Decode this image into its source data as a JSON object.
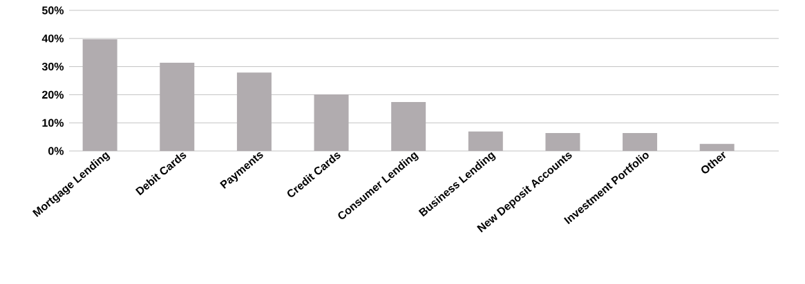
{
  "chart_data": {
    "type": "bar",
    "categories": [
      "Mortgage Lending",
      "Debit Cards",
      "Payments",
      "Credit Cards",
      "Consumer Lending",
      "Business Lending",
      "New Deposit Accounts",
      "Investment Portfolio",
      "Other"
    ],
    "values": [
      39.7,
      31.4,
      27.9,
      20.1,
      17.4,
      6.9,
      6.4,
      6.4,
      2.5
    ],
    "color": "#b1acaf",
    "ylim": [
      0,
      50
    ],
    "yticks": [
      {
        "value": 0,
        "label": "0%"
      },
      {
        "value": 10,
        "label": "10%"
      },
      {
        "value": 20,
        "label": "20%"
      },
      {
        "value": 30,
        "label": "30%"
      },
      {
        "value": 40,
        "label": "40%"
      },
      {
        "value": 50,
        "label": "50%"
      }
    ],
    "grid": "y"
  }
}
